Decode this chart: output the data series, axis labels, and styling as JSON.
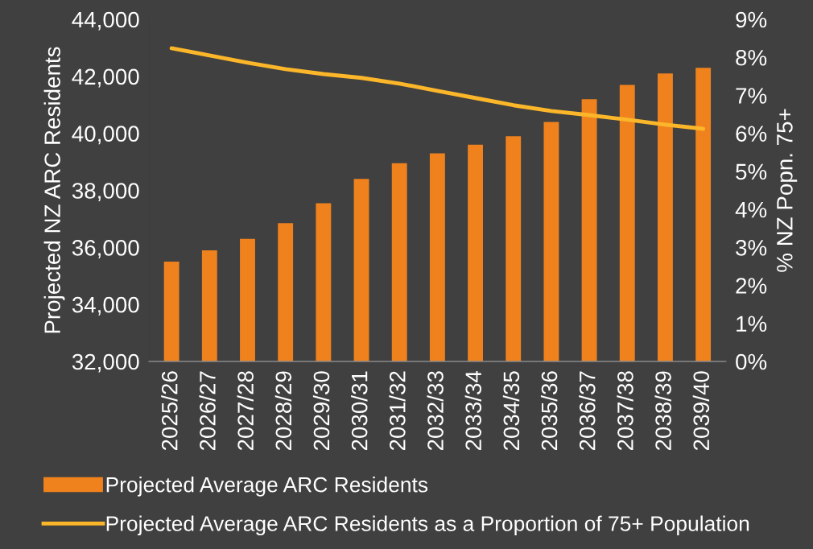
{
  "chart_data": {
    "type": "bar",
    "categories": [
      "2025/26",
      "2026/27",
      "2027/28",
      "2028/29",
      "2029/30",
      "2030/31",
      "2031/32",
      "2032/33",
      "2033/34",
      "2034/35",
      "2035/36",
      "2036/37",
      "2037/38",
      "2038/39",
      "2039/40"
    ],
    "series": [
      {
        "name": "Projected Average ARC Residents",
        "color": "#f0821e",
        "values": [
          35500,
          35900,
          36300,
          36850,
          37550,
          38400,
          38950,
          39300,
          39600,
          39900,
          40400,
          41200,
          41700,
          42100,
          42300
        ]
      },
      {
        "name": "Projected Average ARC Residents as a Proportion of 75+ Population",
        "type": "line",
        "axis": "y2",
        "color": "#fbb62a",
        "values": [
          8.24,
          8.05,
          7.86,
          7.69,
          7.56,
          7.46,
          7.31,
          7.12,
          6.93,
          6.74,
          6.59,
          6.48,
          6.36,
          6.23,
          6.12
        ]
      }
    ],
    "ylabel": "Projected NZ ARC Residents",
    "y2label": "% NZ Popn. 75+",
    "ylim": [
      32000,
      44000
    ],
    "yticks": [
      {
        "value": 32000,
        "label": "32,000"
      },
      {
        "value": 34000,
        "label": "34,000"
      },
      {
        "value": 36000,
        "label": "36,000"
      },
      {
        "value": 38000,
        "label": "38,000"
      },
      {
        "value": 40000,
        "label": "40,000"
      },
      {
        "value": 42000,
        "label": "42,000"
      },
      {
        "value": 44000,
        "label": "44,000"
      }
    ],
    "y2lim": [
      0,
      9
    ],
    "y2ticks": [
      {
        "value": 0,
        "label": "0%"
      },
      {
        "value": 1,
        "label": "1%"
      },
      {
        "value": 2,
        "label": "2%"
      },
      {
        "value": 3,
        "label": "3%"
      },
      {
        "value": 4,
        "label": "4%"
      },
      {
        "value": 5,
        "label": "5%"
      },
      {
        "value": 6,
        "label": "6%"
      },
      {
        "value": 7,
        "label": "7%"
      },
      {
        "value": 8,
        "label": "8%"
      },
      {
        "value": 9,
        "label": "9%"
      }
    ],
    "grid": false,
    "legend": "bottom",
    "marker": "none",
    "line_style": "solid"
  }
}
